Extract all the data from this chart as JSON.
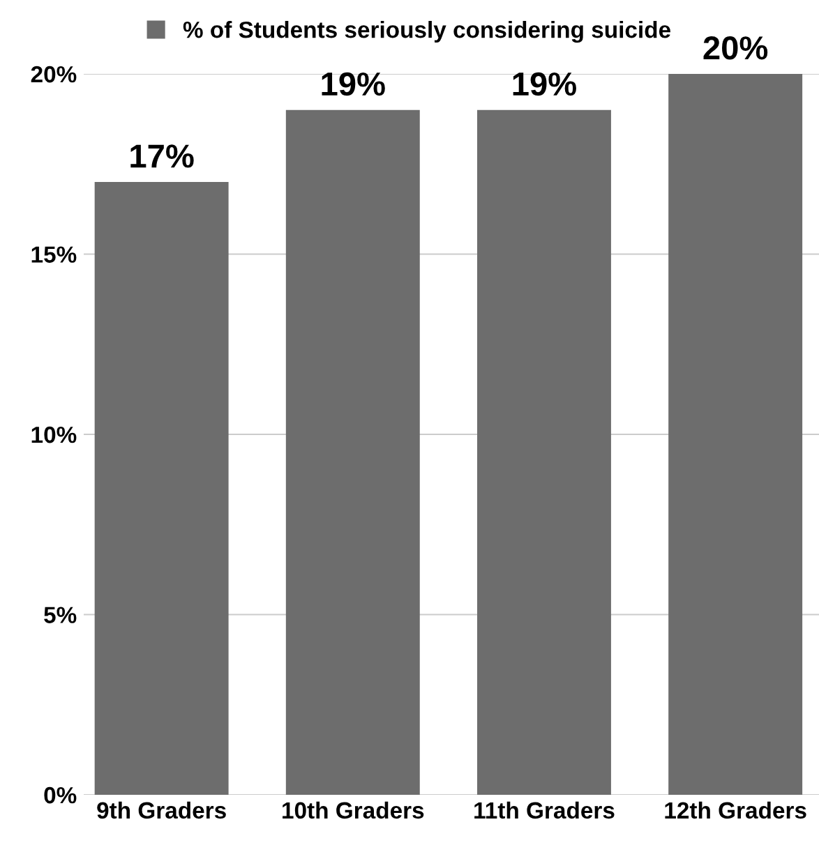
{
  "chart_data": {
    "type": "bar",
    "categories": [
      "9th Graders",
      "10th Graders",
      "11th Graders",
      "12th Graders"
    ],
    "series": [
      {
        "name": "% of Students seriously considering suicide",
        "color": "#6d6d6d",
        "values": [
          17,
          19,
          19,
          20
        ],
        "value_labels": [
          "17%",
          "19%",
          "19%",
          "20%"
        ]
      }
    ],
    "ylim": [
      0,
      20
    ],
    "yticks": [
      {
        "value": 0,
        "label": "0%"
      },
      {
        "value": 5,
        "label": "5%"
      },
      {
        "value": 10,
        "label": "10%"
      },
      {
        "value": 15,
        "label": "15%"
      },
      {
        "value": 20,
        "label": "20%"
      }
    ],
    "grid": "y",
    "legend": "top"
  }
}
